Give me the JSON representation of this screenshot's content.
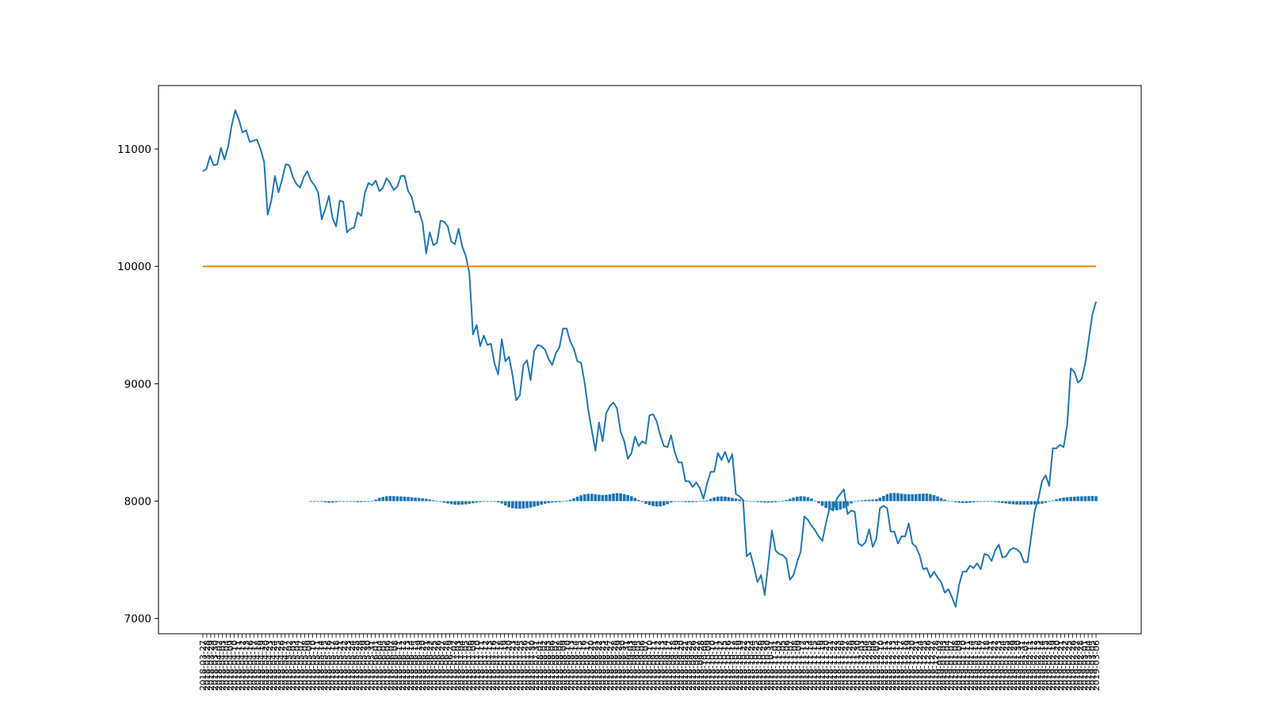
{
  "chart_data": {
    "type": "line",
    "title": "",
    "xlabel": "",
    "ylabel": "",
    "ylim": [
      6870,
      11540
    ],
    "yticks": [
      7000,
      8000,
      9000,
      10000,
      11000
    ],
    "x_first_date": "2018-03-27",
    "x_last_date": "2019-03-06",
    "series": [
      {
        "color": "#1f77b4",
        "style": "line",
        "values": [
          10810,
          10830,
          10940,
          10860,
          10870,
          11010,
          10910,
          11020,
          11200,
          11330,
          11250,
          11140,
          11160,
          11060,
          11070,
          11080,
          11000,
          10890,
          10440,
          10560,
          10770,
          10630,
          10740,
          10870,
          10860,
          10760,
          10700,
          10670,
          10760,
          10810,
          10730,
          10690,
          10630,
          10400,
          10490,
          10600,
          10410,
          10340,
          10560,
          10550,
          10290,
          10320,
          10330,
          10460,
          10430,
          10630,
          10710,
          10690,
          10730,
          10640,
          10670,
          10750,
          10710,
          10650,
          10680,
          10770,
          10770,
          10640,
          10590,
          10460,
          10470,
          10370,
          10110,
          10290,
          10180,
          10200,
          10390,
          10380,
          10340,
          10210,
          10190,
          10320,
          10170,
          10090,
          9940,
          9420,
          9500,
          9320,
          9410,
          9330,
          9340,
          9170,
          9080,
          9380,
          9190,
          9230,
          9070,
          8860,
          8900,
          9160,
          9200,
          9030,
          9280,
          9330,
          9320,
          9290,
          9210,
          9160,
          9260,
          9310,
          9470,
          9470,
          9360,
          9300,
          9190,
          9180,
          9010,
          8780,
          8600,
          8430,
          8670,
          8510,
          8750,
          8810,
          8840,
          8790,
          8590,
          8510,
          8360,
          8410,
          8550,
          8470,
          8510,
          8490,
          8730,
          8740,
          8680,
          8560,
          8470,
          8460,
          8560,
          8420,
          8330,
          8330,
          8170,
          8170,
          8120,
          8160,
          8110,
          8020,
          8150,
          8250,
          8250,
          8410,
          8350,
          8420,
          8330,
          8400,
          8060,
          8040,
          8010,
          7530,
          7560,
          7440,
          7310,
          7370,
          7200,
          7470,
          7750,
          7580,
          7550,
          7540,
          7510,
          7330,
          7370,
          7480,
          7570,
          7870,
          7840,
          7790,
          7750,
          7700,
          7660,
          7810,
          7940,
          7920,
          8020,
          8060,
          8100,
          7890,
          7920,
          7910,
          7640,
          7620,
          7650,
          7760,
          7610,
          7680,
          7940,
          7960,
          7940,
          7740,
          7740,
          7640,
          7700,
          7700,
          7810,
          7640,
          7610,
          7540,
          7420,
          7430,
          7350,
          7400,
          7350,
          7310,
          7220,
          7250,
          7180,
          7100,
          7290,
          7400,
          7400,
          7450,
          7430,
          7470,
          7420,
          7550,
          7540,
          7490,
          7580,
          7630,
          7520,
          7530,
          7580,
          7600,
          7590,
          7560,
          7480,
          7480,
          7700,
          7920,
          8020,
          8170,
          8220,
          8130,
          8450,
          8450,
          8480,
          8460,
          8650,
          9130,
          9100,
          9010,
          9040,
          9170,
          9380,
          9590,
          9700
        ]
      },
      {
        "color": "#ff7f0e",
        "style": "line",
        "values": [
          10000,
          10000
        ]
      },
      {
        "color": "#1f77b4",
        "style": "bar",
        "start_index": 30,
        "baseline": 8000,
        "values": [
          0,
          1,
          -3,
          -6,
          -10,
          -14,
          -13,
          -9,
          -4,
          -1,
          0,
          -2,
          -5,
          -9,
          -8,
          -6,
          -3,
          4,
          14,
          28,
          36,
          42,
          44,
          43,
          41,
          40,
          38,
          36,
          33,
          30,
          27,
          24,
          20,
          15,
          8,
          1,
          -6,
          -14,
          -20,
          -26,
          -30,
          -31,
          -30,
          -27,
          -23,
          -18,
          -13,
          -8,
          -4,
          -1,
          0,
          -4,
          -10,
          -20,
          -38,
          -52,
          -60,
          -64,
          -65,
          -63,
          -60,
          -55,
          -48,
          -40,
          -30,
          -22,
          -16,
          -12,
          -10,
          -9,
          -5,
          3,
          12,
          24,
          38,
          50,
          58,
          62,
          62,
          58,
          55,
          52,
          54,
          58,
          64,
          68,
          66,
          60,
          52,
          42,
          28,
          10,
          -8,
          -24,
          -34,
          -42,
          -46,
          -44,
          -38,
          -26,
          -12,
          -2,
          0,
          -4,
          -8,
          -10,
          -9,
          -7,
          -3,
          2,
          8,
          20,
          32,
          38,
          40,
          38,
          34,
          28,
          22,
          15,
          10,
          5,
          0,
          -5,
          -8,
          -10,
          -12,
          -13,
          -12,
          -10,
          -5,
          2,
          10,
          20,
          30,
          38,
          42,
          40,
          34,
          22,
          4,
          -18,
          -40,
          -58,
          -70,
          -76,
          -78,
          -72,
          -60,
          -42,
          -20,
          -4,
          4,
          8,
          10,
          12,
          14,
          18,
          30,
          45,
          60,
          68,
          70,
          68,
          64,
          60,
          58,
          58,
          60,
          62,
          64,
          64,
          60,
          52,
          40,
          26,
          14,
          4,
          -4,
          -10,
          -14,
          -16,
          -16,
          -14,
          -10,
          -6,
          -3,
          -2,
          -3,
          -5,
          -8,
          -12,
          -16,
          -20,
          -24,
          -27,
          -29,
          -30,
          -30,
          -30,
          -29,
          -28,
          -26,
          -22,
          -14,
          -4,
          6,
          16,
          24,
          30,
          34,
          36,
          38,
          40,
          41,
          42,
          43,
          44,
          42,
          38,
          34,
          30,
          26,
          22,
          18,
          14,
          10,
          12,
          30,
          55,
          70,
          76,
          78,
          80,
          80,
          78,
          76,
          80,
          86,
          92,
          96,
          90,
          86,
          82,
          84,
          88,
          90
        ]
      }
    ],
    "x_tick_labels": [
      "2018-03-27",
      "2018-03-28",
      "2018-03-29",
      "2018-03-30",
      "2018-04-02",
      "2018-04-03",
      "2018-04-04",
      "2018-04-09",
      "2018-04-10",
      "2018-04-11",
      "2018-04-12",
      "2018-04-13",
      "2018-04-16",
      "2018-04-17",
      "2018-04-18",
      "2018-04-19",
      "2018-04-20",
      "2018-04-23",
      "2018-04-24",
      "2018-04-25",
      "2018-04-26",
      "2018-04-27",
      "2018-05-02",
      "2018-05-03",
      "2018-05-04",
      "2018-05-07",
      "2018-05-08",
      "2018-05-09",
      "2018-05-10",
      "2018-05-11",
      "2018-05-14",
      "2018-05-15",
      "2018-05-16",
      "2018-05-17",
      "2018-05-18",
      "2018-05-21",
      "2018-05-22",
      "2018-05-23",
      "2018-05-24",
      "2018-05-25",
      "2018-05-28",
      "2018-05-29",
      "2018-05-30",
      "2018-05-31",
      "2018-06-01",
      "2018-06-04",
      "2018-06-05",
      "2018-06-06",
      "2018-06-07",
      "2018-06-08",
      "2018-06-11",
      "2018-06-12",
      "2018-06-13",
      "2018-06-14",
      "2018-06-15",
      "2018-06-19",
      "2018-06-20",
      "2018-06-21",
      "2018-06-22",
      "2018-06-25",
      "2018-06-26",
      "2018-06-27",
      "2018-06-28",
      "2018-06-29",
      "2018-07-02",
      "2018-07-03",
      "2018-07-04",
      "2018-07-05",
      "2018-07-06",
      "2018-07-09",
      "2018-07-10",
      "2018-07-11",
      "2018-07-12",
      "2018-07-13",
      "2018-07-16",
      "2018-07-17",
      "2018-07-18",
      "2018-07-19",
      "2018-07-20",
      "2018-07-23",
      "2018-07-24",
      "2018-07-25",
      "2018-07-26",
      "2018-07-27",
      "2018-07-30",
      "2018-07-31",
      "2018-08-01",
      "2018-08-02",
      "2018-08-03",
      "2018-08-06",
      "2018-08-07",
      "2018-08-08",
      "2018-08-09",
      "2018-08-10",
      "2018-08-13",
      "2018-08-14",
      "2018-08-15",
      "2018-08-16",
      "2018-08-17",
      "2018-08-20",
      "2018-08-21",
      "2018-08-22",
      "2018-08-23",
      "2018-08-24",
      "2018-08-27",
      "2018-08-28",
      "2018-08-29",
      "2018-08-30",
      "2018-08-31",
      "2018-09-03",
      "2018-09-04",
      "2018-09-05",
      "2018-09-06",
      "2018-09-07",
      "2018-09-10",
      "2018-09-11",
      "2018-09-12",
      "2018-09-13",
      "2018-09-14",
      "2018-09-17",
      "2018-09-18",
      "2018-09-19",
      "2018-09-20",
      "2018-09-21",
      "2018-09-25",
      "2018-09-26",
      "2018-09-27",
      "2018-09-28",
      "2018-10-08",
      "2018-10-09",
      "2018-10-10",
      "2018-10-11",
      "2018-10-12",
      "2018-10-15",
      "2018-10-16",
      "2018-10-17",
      "2018-10-18",
      "2018-10-19",
      "2018-10-22",
      "2018-10-23",
      "2018-10-24",
      "2018-10-25",
      "2018-10-26",
      "2018-10-29",
      "2018-10-30",
      "2018-10-31",
      "2018-11-01",
      "2018-11-02",
      "2018-11-05",
      "2018-11-06",
      "2018-11-07",
      "2018-11-08",
      "2018-11-09",
      "2018-11-12",
      "2018-11-13",
      "2018-11-14",
      "2018-11-15",
      "2018-11-16",
      "2018-11-19",
      "2018-11-20",
      "2018-11-21",
      "2018-11-22",
      "2018-11-23",
      "2018-11-26",
      "2018-11-27",
      "2018-11-28",
      "2018-11-29",
      "2018-11-30",
      "2018-12-03",
      "2018-12-04",
      "2018-12-05",
      "2018-12-06",
      "2018-12-07",
      "2018-12-10",
      "2018-12-11",
      "2018-12-12",
      "2018-12-13",
      "2018-12-14",
      "2018-12-17",
      "2018-12-18",
      "2018-12-19",
      "2018-12-20",
      "2018-12-21",
      "2018-12-24",
      "2018-12-25",
      "2018-12-26",
      "2018-12-27",
      "2018-12-28",
      "2019-01-02",
      "2019-01-03",
      "2019-01-04",
      "2019-01-07",
      "2019-01-08",
      "2019-01-09",
      "2019-01-10",
      "2019-01-11",
      "2019-01-14",
      "2019-01-15",
      "2019-01-16",
      "2019-01-17",
      "2019-01-18",
      "2019-01-21",
      "2019-01-22",
      "2019-01-23",
      "2019-01-24",
      "2019-01-25",
      "2019-01-28",
      "2019-01-29",
      "2019-01-30",
      "2019-01-31",
      "2019-02-01",
      "2019-02-11",
      "2019-02-12",
      "2019-02-13",
      "2019-02-14",
      "2019-02-15",
      "2019-02-18",
      "2019-02-19",
      "2019-02-20",
      "2019-02-21",
      "2019-02-22",
      "2019-02-25",
      "2019-02-26",
      "2019-02-27",
      "2019-02-28",
      "2019-03-01",
      "2019-03-04",
      "2019-03-05",
      "2019-03-06"
    ],
    "grid": false,
    "legend": "none"
  }
}
